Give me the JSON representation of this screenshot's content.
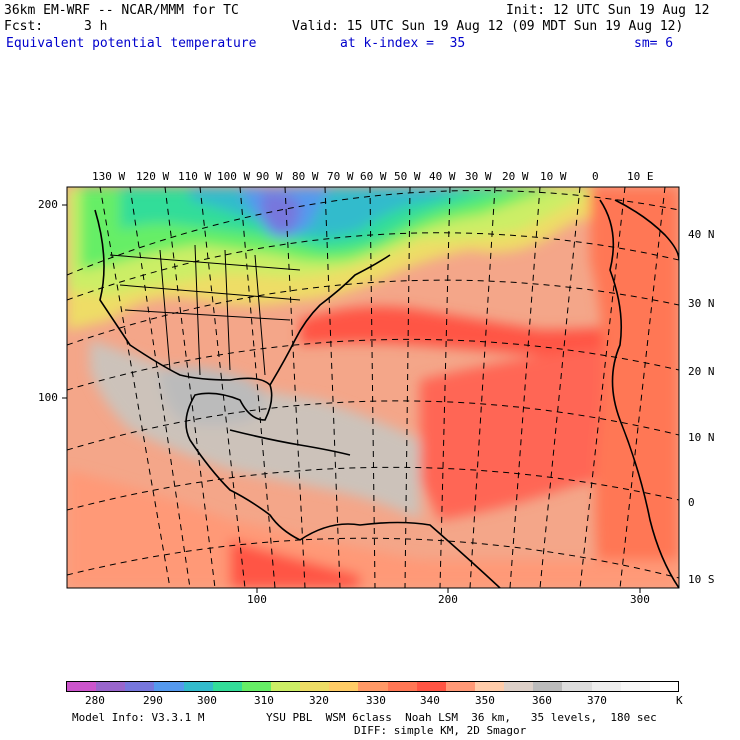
{
  "header": {
    "line1_left": "36km EM-WRF -- NCAR/MMM for TC",
    "line1_right": "Init: 12 UTC Sun 19 Aug 12",
    "line2_left_label": "Fcst:",
    "line2_left_value": "3 h",
    "line2_right": "Valid: 15 UTC Sun 19 Aug 12 (09 MDT Sun 19 Aug 12)",
    "field_name": "Equivalent potential temperature",
    "level": "at k-index =  35",
    "smoothing": "sm= 6"
  },
  "top_lon_labels": [
    "130 W",
    "120 W",
    "110 W",
    "100 W",
    "90 W",
    "80 W",
    "70 W",
    "60 W",
    "50 W",
    "40 W",
    "30 W",
    "20 W",
    "10 W",
    "0",
    "10 E"
  ],
  "right_lat_labels": [
    "40 N",
    "30 N",
    "20 N",
    "10 N",
    "0",
    "10 S"
  ],
  "left_grid_labels": [
    "200",
    "100"
  ],
  "bottom_grid_labels": [
    "100",
    "200",
    "300"
  ],
  "colorbar": {
    "colors": [
      "#cc55cc",
      "#9966cc",
      "#7777dd",
      "#5599ee",
      "#33bbcc",
      "#33dd99",
      "#66ee66",
      "#ccee66",
      "#eedd66",
      "#ffcc66",
      "#ff9966",
      "#ff7755",
      "#ff5544",
      "#ff9977",
      "#ffccaa",
      "#ddd0c8",
      "#bbbbbb",
      "#dddddd",
      "#eeeeee",
      "#f7f7f7",
      "#ffffff"
    ],
    "tick_labels": [
      "280",
      "290",
      "300",
      "310",
      "320",
      "330",
      "340",
      "350",
      "360",
      "370"
    ],
    "unit": "K"
  },
  "footer": {
    "model_info": "Model Info: V3.3.1 M",
    "physics": "YSU PBL  WSM 6class  Noah LSM  36 km,   35 levels,  180 sec",
    "diffusion": "DIFF: simple KM, 2D Smagor"
  }
}
